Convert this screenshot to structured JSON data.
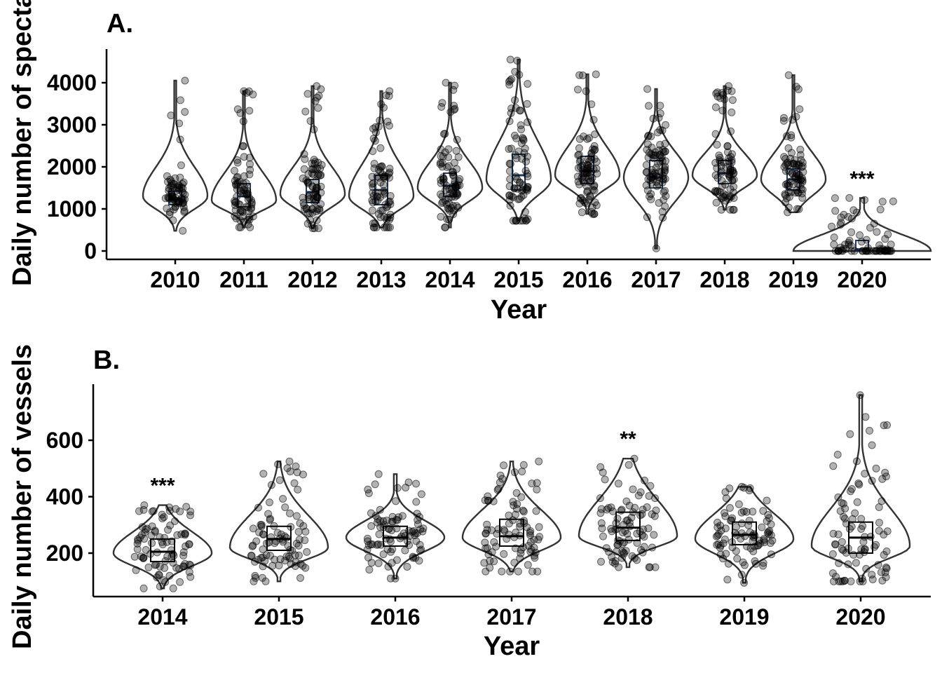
{
  "chart_data": [
    {
      "type": "violin",
      "panel_label": "A.",
      "xlabel": "Year",
      "ylabel": "Daily number of spectators",
      "ylim": [
        0,
        4600
      ],
      "yticks": [
        0,
        1000,
        2000,
        3000,
        4000
      ],
      "categories": [
        "2010",
        "2011",
        "2012",
        "2013",
        "2014",
        "2015",
        "2016",
        "2017",
        "2018",
        "2019",
        "2020"
      ],
      "series": [
        {
          "category": "2010",
          "min": 480,
          "q1": 1100,
          "median": 1250,
          "q3": 1420,
          "max": 4050,
          "mode": 1300,
          "n": 70
        },
        {
          "category": "2011",
          "min": 560,
          "q1": 1050,
          "median": 1300,
          "q3": 1600,
          "max": 3800,
          "mode": 1200,
          "n": 75
        },
        {
          "category": "2012",
          "min": 540,
          "q1": 1150,
          "median": 1400,
          "q3": 1700,
          "max": 3920,
          "mode": 1350,
          "n": 80
        },
        {
          "category": "2013",
          "min": 560,
          "q1": 1100,
          "median": 1450,
          "q3": 1800,
          "max": 3800,
          "mode": 1300,
          "n": 80
        },
        {
          "category": "2014",
          "min": 560,
          "q1": 1300,
          "median": 1550,
          "q3": 1850,
          "max": 4000,
          "mode": 1500,
          "n": 85
        },
        {
          "category": "2015",
          "min": 720,
          "q1": 1450,
          "median": 1800,
          "q3": 2300,
          "max": 4550,
          "mode": 1700,
          "n": 80
        },
        {
          "category": "2016",
          "min": 880,
          "q1": 1600,
          "median": 1900,
          "q3": 2250,
          "max": 4200,
          "mode": 1800,
          "n": 85
        },
        {
          "category": "2017",
          "min": 60,
          "q1": 1500,
          "median": 1750,
          "q3": 2150,
          "max": 3850,
          "mode": 1750,
          "n": 85
        },
        {
          "category": "2018",
          "min": 980,
          "q1": 1600,
          "median": 1850,
          "q3": 2150,
          "max": 3920,
          "mode": 1800,
          "n": 80
        },
        {
          "category": "2019",
          "min": 920,
          "q1": 1450,
          "median": 1700,
          "q3": 1950,
          "max": 4180,
          "mode": 1700,
          "n": 80
        },
        {
          "category": "2020",
          "min": 0,
          "q1": 0,
          "median": 40,
          "q3": 250,
          "max": 1260,
          "mode": 0,
          "n": 75
        }
      ],
      "annotations": [
        {
          "category": "2020",
          "y": 1550,
          "text": "***"
        }
      ],
      "grid": false,
      "point_color": "#000000",
      "point_opacity": 0.3,
      "box_color": "#1f3a5f"
    },
    {
      "type": "violin",
      "panel_label": "B.",
      "xlabel": "Year",
      "ylabel": "Daily number of vessels",
      "ylim": [
        50,
        790
      ],
      "yticks": [
        200,
        400,
        600
      ],
      "categories": [
        "2014",
        "2015",
        "2016",
        "2017",
        "2018",
        "2019",
        "2020"
      ],
      "series": [
        {
          "category": "2014",
          "min": 75,
          "q1": 170,
          "median": 205,
          "q3": 250,
          "max": 370,
          "mode": 200,
          "n": 90
        },
        {
          "category": "2015",
          "min": 100,
          "q1": 210,
          "median": 250,
          "q3": 295,
          "max": 525,
          "mode": 220,
          "n": 90
        },
        {
          "category": "2016",
          "min": 110,
          "q1": 225,
          "median": 255,
          "q3": 295,
          "max": 480,
          "mode": 255,
          "n": 90
        },
        {
          "category": "2017",
          "min": 135,
          "q1": 225,
          "median": 260,
          "q3": 320,
          "max": 525,
          "mode": 255,
          "n": 90
        },
        {
          "category": "2018",
          "min": 150,
          "q1": 245,
          "median": 290,
          "q3": 345,
          "max": 535,
          "mode": 260,
          "n": 90
        },
        {
          "category": "2019",
          "min": 95,
          "q1": 230,
          "median": 265,
          "q3": 310,
          "max": 435,
          "mode": 250,
          "n": 90
        },
        {
          "category": "2020",
          "min": 100,
          "q1": 200,
          "median": 255,
          "q3": 310,
          "max": 760,
          "mode": 225,
          "n": 90
        }
      ],
      "annotations": [
        {
          "category": "2014",
          "y": 415,
          "text": "***"
        },
        {
          "category": "2018",
          "y": 580,
          "text": "**"
        }
      ],
      "grid": false,
      "point_color": "#000000",
      "point_opacity": 0.3,
      "box_color": "#000000"
    }
  ]
}
